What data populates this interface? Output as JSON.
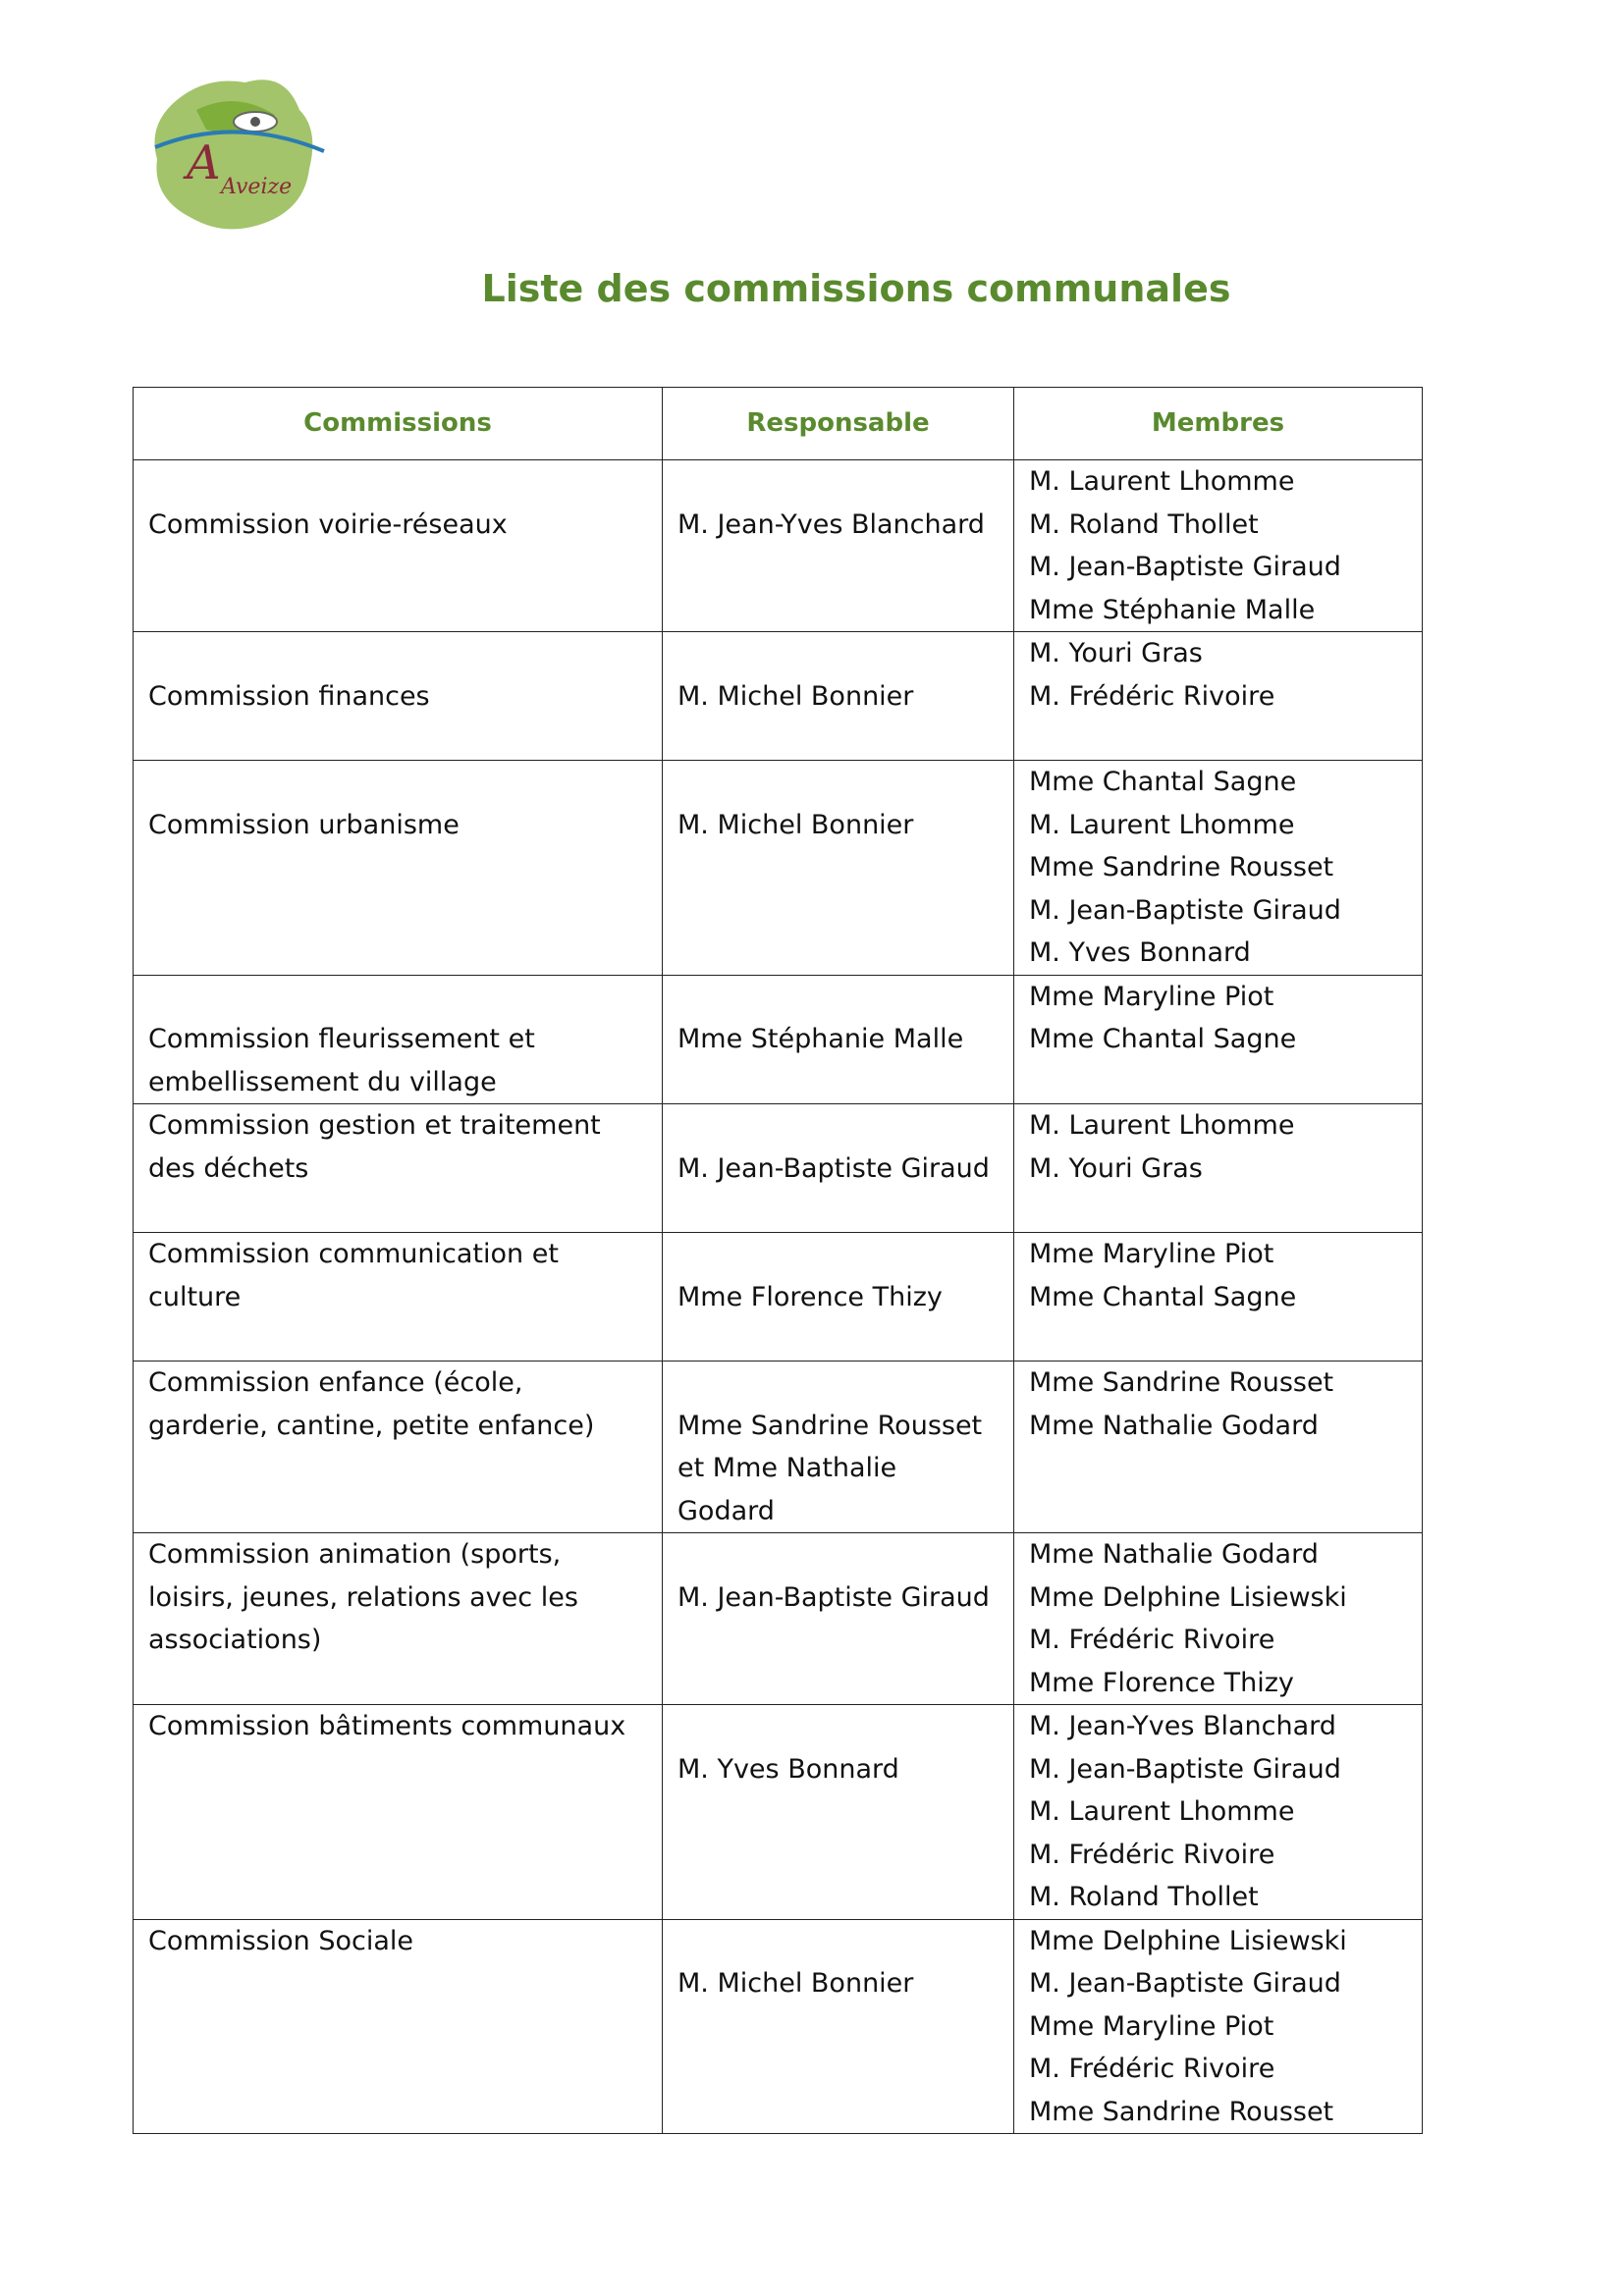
{
  "logo": {
    "text": "Aveize"
  },
  "header": {
    "title": "Liste des commissions communales"
  },
  "table": {
    "columns": [
      "Commissions",
      "Responsable",
      "Membres"
    ],
    "rows": [
      [
        "Commission voirie-réseaux",
        "M. Jean-Yves Blanchard",
        [
          "M. Laurent Lhomme",
          "M. Roland Thollet",
          "M. Jean-Baptiste Giraud",
          "Mme Stéphanie Malle"
        ]
      ],
      [
        "Commission finances",
        "M. Michel Bonnier",
        [
          "M. Youri Gras",
          "M. Frédéric Rivoire"
        ]
      ],
      [
        "Commission urbanisme",
        "M. Michel Bonnier",
        [
          "Mme Chantal Sagne",
          "M. Laurent Lhomme",
          "Mme Sandrine Rousset",
          "M. Jean-Baptiste Giraud",
          "M. Yves Bonnard"
        ]
      ],
      [
        "Commission fleurissement et embellissement du village",
        "Mme Stéphanie Malle",
        [
          "Mme Maryline Piot",
          "Mme Chantal Sagne"
        ]
      ],
      [
        "Commission gestion et traitement des déchets",
        "M. Jean-Baptiste Giraud",
        [
          "M. Laurent Lhomme",
          "M. Youri Gras"
        ]
      ],
      [
        "Commission communication et culture",
        "Mme Florence Thizy",
        [
          "Mme Maryline Piot",
          "Mme Chantal Sagne"
        ]
      ],
      [
        "Commission enfance (école, garderie, cantine, petite enfance)",
        "Mme Sandrine Rousset et Mme Nathalie Godard",
        [
          "Mme Sandrine Rousset",
          "Mme Nathalie Godard"
        ]
      ],
      [
        "Commission animation (sports, loisirs, jeunes, relations avec les associations)",
        "M. Jean-Baptiste Giraud",
        [
          "Mme Nathalie Godard",
          "Mme Delphine Lisiewski",
          "M. Frédéric Rivoire",
          "Mme Florence Thizy"
        ]
      ],
      [
        "Commission bâtiments communaux",
        "M. Yves Bonnard",
        [
          "M. Jean-Yves Blanchard",
          "M. Jean-Baptiste Giraud",
          "M. Laurent Lhomme",
          "M. Frédéric Rivoire",
          "M. Roland Thollet"
        ]
      ],
      [
        "Commission Sociale",
        "M. Michel Bonnier",
        [
          "Mme Delphine Lisiewski",
          "M. Jean-Baptiste Giraud",
          "Mme Maryline Piot",
          "M. Frédéric Rivoire",
          "Mme Sandrine Rousset"
        ]
      ]
    ]
  }
}
